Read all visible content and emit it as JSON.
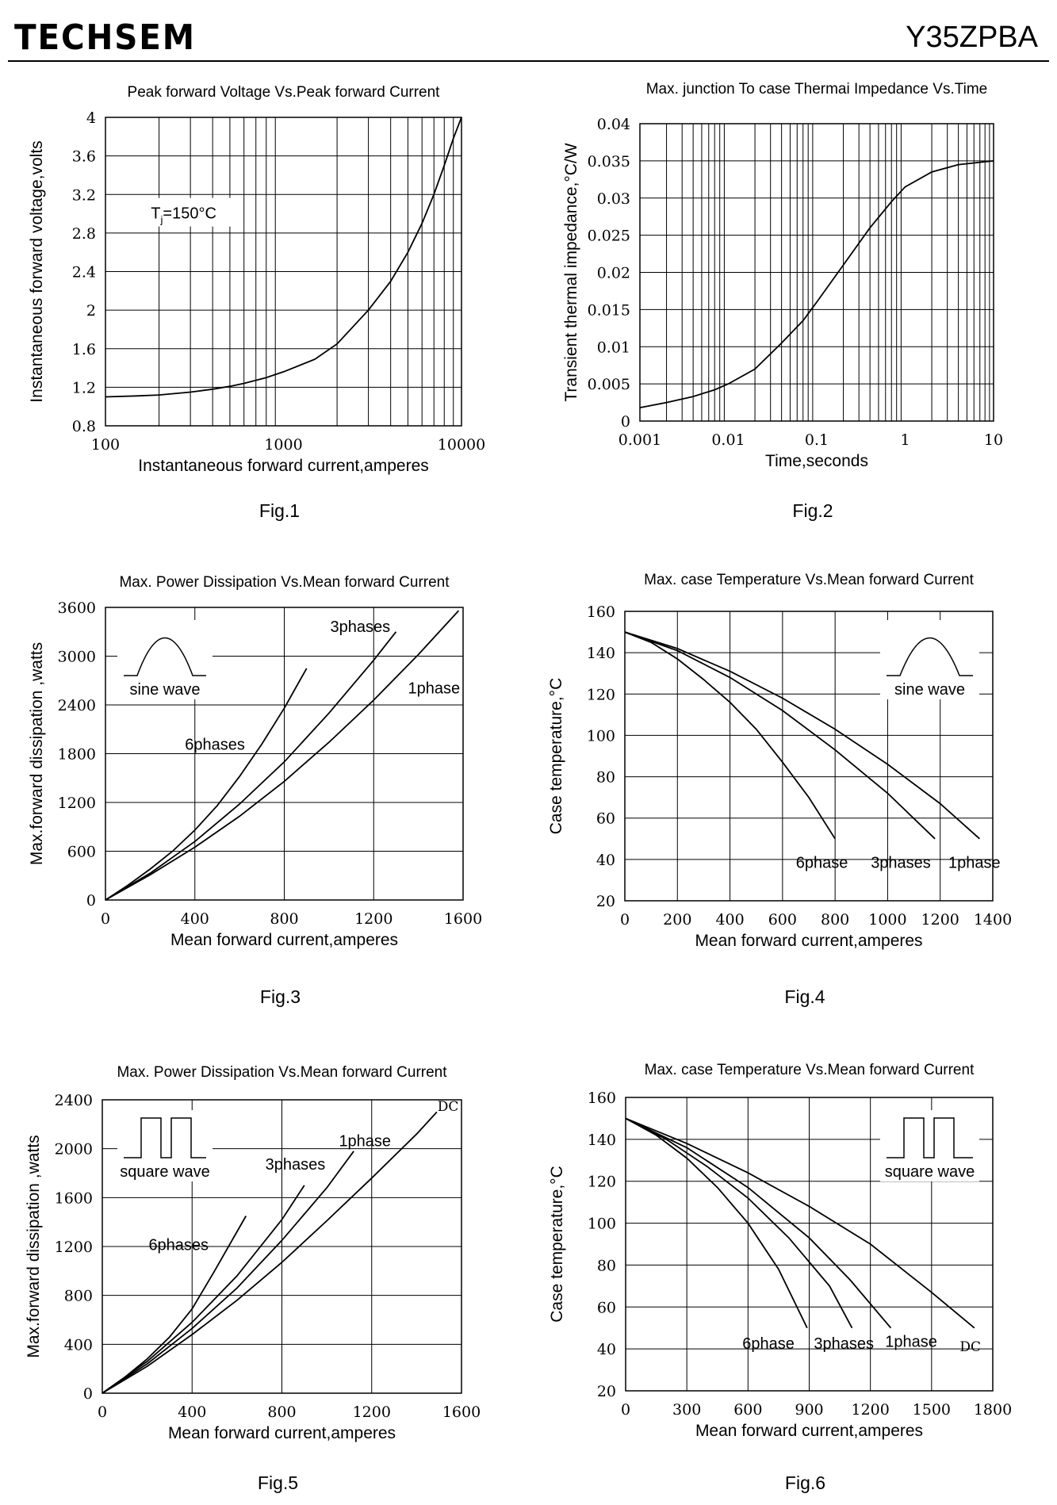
{
  "header": {
    "brand": "TECHSEM",
    "part_number": "Y35ZPBA"
  },
  "chart_data": [
    {
      "id": "fig1",
      "type": "line",
      "caption": "Fig.1",
      "title": "Peak forward Voltage Vs.Peak forward Current",
      "xlabel": "Instantaneous forward current,amperes",
      "ylabel": "Instantaneous forward voltage,volts",
      "xscale": "log",
      "xlim": [
        100,
        10000
      ],
      "ylim": [
        0.8,
        4
      ],
      "xticks": [
        100,
        1000,
        10000
      ],
      "xtick_labels": [
        "100",
        "1000",
        "10000"
      ],
      "yticks": [
        0.8,
        1.2,
        1.6,
        2,
        2.4,
        2.8,
        3.2,
        3.6,
        4
      ],
      "ytick_labels": [
        "0.8",
        "1.2",
        "1.6",
        "2",
        "2.4",
        "2.8",
        "3.2",
        "3.6",
        "4"
      ],
      "annotations": [
        {
          "text": "Tj=150°C",
          "x": 180,
          "y": 2.95
        }
      ],
      "series": [
        {
          "name": "",
          "x": [
            100,
            150,
            200,
            300,
            400,
            500,
            600,
            800,
            1000,
            1500,
            2000,
            3000,
            4000,
            5000,
            6000,
            7000,
            8000,
            9000,
            10000
          ],
          "y": [
            1.1,
            1.11,
            1.12,
            1.15,
            1.18,
            1.21,
            1.24,
            1.3,
            1.36,
            1.49,
            1.65,
            2.0,
            2.3,
            2.6,
            2.9,
            3.2,
            3.5,
            3.78,
            4.0
          ]
        }
      ]
    },
    {
      "id": "fig2",
      "type": "line",
      "caption": "Fig.2",
      "title": "Max. junction To case Thermai Impedance Vs.Time",
      "xlabel": "Time,seconds",
      "ylabel": "Transient thermal impedance,°C/W",
      "xscale": "log",
      "xlim": [
        0.001,
        10
      ],
      "ylim": [
        0,
        0.04
      ],
      "xticks": [
        0.001,
        0.01,
        0.1,
        1,
        10
      ],
      "xtick_labels": [
        "0.001",
        "0.01",
        "0.1",
        "1",
        "10"
      ],
      "yticks": [
        0,
        0.005,
        0.01,
        0.015,
        0.02,
        0.025,
        0.03,
        0.035,
        0.04
      ],
      "ytick_labels": [
        "0",
        "0.005",
        "0.01",
        "0.015",
        "0.02",
        "0.025",
        "0.03",
        "0.035",
        "0.04"
      ],
      "series": [
        {
          "name": "",
          "x": [
            0.001,
            0.002,
            0.004,
            0.007,
            0.01,
            0.02,
            0.04,
            0.07,
            0.1,
            0.2,
            0.4,
            0.7,
            1,
            2,
            4,
            10
          ],
          "y": [
            0.0018,
            0.0025,
            0.0033,
            0.0042,
            0.005,
            0.007,
            0.0105,
            0.0135,
            0.016,
            0.021,
            0.026,
            0.0295,
            0.0315,
            0.0335,
            0.0345,
            0.035
          ]
        }
      ]
    },
    {
      "id": "fig3",
      "type": "line",
      "caption": "Fig.3",
      "title": "Max. Power Dissipation Vs.Mean forward Current",
      "xlabel": "Mean forward current,amperes",
      "ylabel": "Max.forward dissipation ,watts",
      "xlim": [
        0,
        1600
      ],
      "ylim": [
        0,
        3600
      ],
      "xticks": [
        0,
        400,
        800,
        1200,
        1600
      ],
      "yticks": [
        0,
        600,
        1200,
        1800,
        2400,
        3000,
        3600
      ],
      "inset": {
        "label": "sine wave",
        "shape": "sine"
      },
      "series_labels": [
        {
          "text": "6phases",
          "x": 490,
          "y": 1850
        },
        {
          "text": "3phases",
          "x": 1140,
          "y": 3300
        },
        {
          "text": "1phase",
          "x": 1470,
          "y": 2540
        }
      ],
      "series": [
        {
          "name": "6phases",
          "x": [
            0,
            100,
            200,
            300,
            400,
            500,
            600,
            700,
            800,
            900
          ],
          "y": [
            0,
            180,
            380,
            600,
            860,
            1160,
            1520,
            1920,
            2360,
            2850
          ]
        },
        {
          "name": "3phases",
          "x": [
            0,
            200,
            400,
            600,
            800,
            1000,
            1200,
            1300
          ],
          "y": [
            0,
            330,
            720,
            1180,
            1700,
            2300,
            2950,
            3300
          ]
        },
        {
          "name": "1phase",
          "x": [
            0,
            200,
            400,
            600,
            800,
            1000,
            1200,
            1400,
            1580
          ],
          "y": [
            0,
            310,
            650,
            1030,
            1460,
            1940,
            2460,
            3020,
            3560
          ]
        }
      ]
    },
    {
      "id": "fig4",
      "type": "line",
      "caption": "Fig.4",
      "title": "Max. case Temperature Vs.Mean forward Current",
      "xlabel": "Mean forward current,amperes",
      "ylabel": "Case temperature,°C",
      "xlim": [
        0,
        1400
      ],
      "ylim": [
        20,
        160
      ],
      "xticks": [
        0,
        200,
        400,
        600,
        800,
        1000,
        1200,
        1400
      ],
      "yticks": [
        20,
        40,
        60,
        80,
        100,
        120,
        140,
        160
      ],
      "inset": {
        "label": "sine wave",
        "shape": "sine"
      },
      "series_labels": [
        {
          "text": "6phase",
          "x": 750,
          "y": 36
        },
        {
          "text": "3phases",
          "x": 1050,
          "y": 36
        },
        {
          "text": "1phase",
          "x": 1330,
          "y": 36
        }
      ],
      "series": [
        {
          "name": "6phase",
          "x": [
            0,
            100,
            200,
            300,
            400,
            500,
            600,
            700,
            800
          ],
          "y": [
            150,
            145,
            137,
            127,
            116,
            103,
            87,
            70,
            50
          ]
        },
        {
          "name": "3phases",
          "x": [
            0,
            200,
            400,
            600,
            800,
            1000,
            1180
          ],
          "y": [
            150,
            141,
            128,
            112,
            93,
            72,
            50
          ]
        },
        {
          "name": "1phase",
          "x": [
            0,
            200,
            400,
            600,
            800,
            1000,
            1200,
            1350
          ],
          "y": [
            150,
            142,
            131,
            118,
            103,
            86,
            67,
            50
          ]
        }
      ]
    },
    {
      "id": "fig5",
      "type": "line",
      "caption": "Fig.5",
      "title": "Max. Power Dissipation Vs.Mean forward Current",
      "xlabel": "Mean forward current,amperes",
      "ylabel": "Max.forward dissipation ,watts",
      "xlim": [
        0,
        1600
      ],
      "ylim": [
        0,
        2400
      ],
      "xticks": [
        0,
        400,
        800,
        1200,
        1600
      ],
      "yticks": [
        0,
        400,
        800,
        1200,
        1600,
        2000,
        2400
      ],
      "inset": {
        "label": "square wave",
        "shape": "square"
      },
      "series_labels": [
        {
          "text": "6phases",
          "x": 340,
          "y": 1170
        },
        {
          "text": "3phases",
          "x": 860,
          "y": 1830
        },
        {
          "text": "1phase",
          "x": 1170,
          "y": 2020
        },
        {
          "text": "DC",
          "x": 1540,
          "y": 2310
        }
      ],
      "series": [
        {
          "name": "6phases",
          "x": [
            0,
            100,
            200,
            300,
            400,
            500,
            640
          ],
          "y": [
            0,
            130,
            280,
            460,
            690,
            1000,
            1450
          ]
        },
        {
          "name": "3phases",
          "x": [
            0,
            200,
            400,
            600,
            800,
            900
          ],
          "y": [
            0,
            260,
            580,
            960,
            1420,
            1700
          ]
        },
        {
          "name": "1phase",
          "x": [
            0,
            200,
            400,
            600,
            800,
            1000,
            1120
          ],
          "y": [
            0,
            240,
            530,
            860,
            1250,
            1680,
            1980
          ]
        },
        {
          "name": "DC",
          "x": [
            0,
            200,
            400,
            600,
            800,
            1000,
            1200,
            1400,
            1490
          ],
          "y": [
            0,
            220,
            480,
            760,
            1070,
            1410,
            1760,
            2120,
            2300
          ]
        }
      ]
    },
    {
      "id": "fig6",
      "type": "line",
      "caption": "Fig.6",
      "title": "Max. case Temperature Vs.Mean forward Current",
      "xlabel": "Mean forward current,amperes",
      "ylabel": "Case temperature,°C",
      "xlim": [
        0,
        1800
      ],
      "ylim": [
        20,
        160
      ],
      "xticks": [
        0,
        300,
        600,
        900,
        1200,
        1500,
        1800
      ],
      "yticks": [
        20,
        40,
        60,
        80,
        100,
        120,
        140,
        160
      ],
      "inset": {
        "label": "square wave",
        "shape": "square"
      },
      "series_labels": [
        {
          "text": "6phase",
          "x": 700,
          "y": 40
        },
        {
          "text": "3phases",
          "x": 1070,
          "y": 40
        },
        {
          "text": "1phase",
          "x": 1400,
          "y": 41
        },
        {
          "text": "DC",
          "x": 1690,
          "y": 39
        }
      ],
      "series": [
        {
          "name": "6phase",
          "x": [
            0,
            150,
            300,
            450,
            600,
            750,
            890
          ],
          "y": [
            150,
            142,
            131,
            117,
            100,
            78,
            50
          ]
        },
        {
          "name": "3phases",
          "x": [
            0,
            200,
            400,
            600,
            800,
            1000,
            1110
          ],
          "y": [
            150,
            140,
            127,
            112,
            93,
            70,
            50
          ]
        },
        {
          "name": "1phase",
          "x": [
            0,
            300,
            600,
            900,
            1100,
            1300
          ],
          "y": [
            150,
            136,
            117,
            93,
            73,
            50
          ]
        },
        {
          "name": "DC",
          "x": [
            0,
            300,
            600,
            900,
            1200,
            1500,
            1710
          ],
          "y": [
            150,
            138,
            124,
            108,
            90,
            67,
            50
          ]
        }
      ]
    }
  ]
}
